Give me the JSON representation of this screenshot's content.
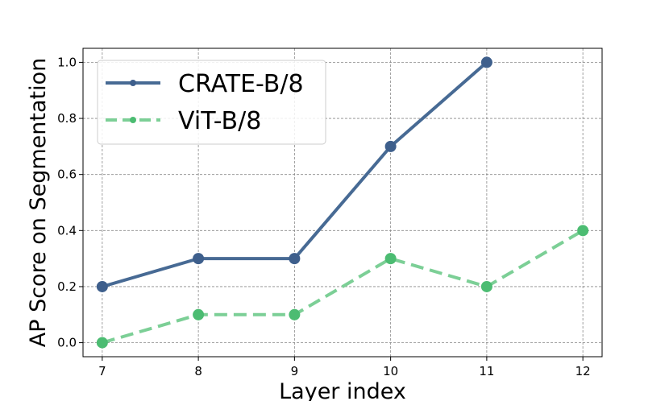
{
  "chart_data": {
    "type": "line",
    "x": [
      7,
      8,
      9,
      10,
      11,
      12
    ],
    "xlabel": "Layer index",
    "ylabel": "AP Score on Segmentation",
    "xlim": [
      6.8,
      12.2
    ],
    "ylim": [
      -0.05,
      1.05
    ],
    "xticks": [
      "7",
      "8",
      "9",
      "10",
      "11",
      "12"
    ],
    "yticks": [
      "0.0",
      "0.2",
      "0.4",
      "0.6",
      "0.8",
      "1.0"
    ],
    "grid": true,
    "legend_position": "top-left",
    "series": [
      {
        "name": "CRATE-B/8",
        "x": [
          7,
          8,
          9,
          10,
          11
        ],
        "values": [
          0.2,
          0.3,
          0.3,
          0.7,
          1.0
        ],
        "line_color": "#476a94",
        "marker_color": "#3e5f8c",
        "line_style": "solid"
      },
      {
        "name": "ViT-B/8",
        "x": [
          7,
          8,
          9,
          10,
          11,
          12
        ],
        "values": [
          0.0,
          0.1,
          0.1,
          0.3,
          0.2,
          0.4
        ],
        "line_color": "#7ccf96",
        "marker_color": "#4cbc72",
        "line_style": "dashed"
      }
    ]
  }
}
